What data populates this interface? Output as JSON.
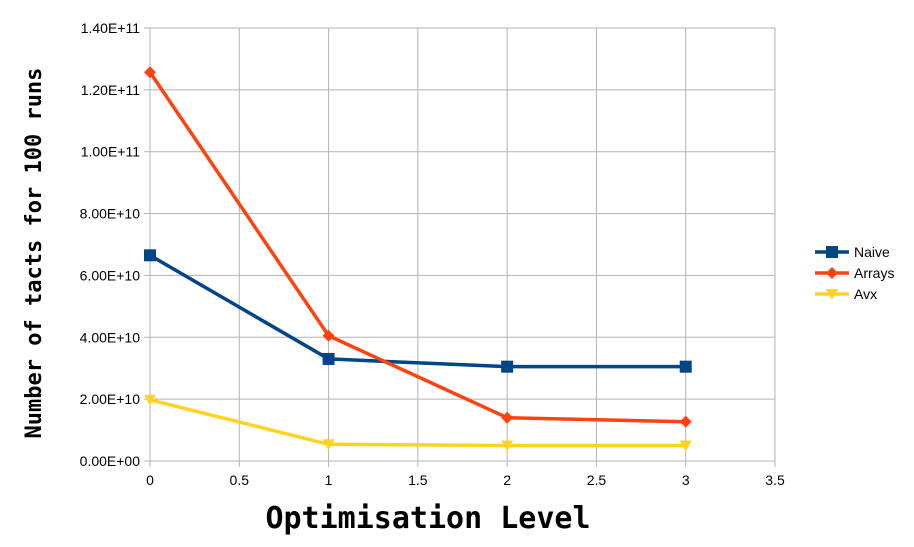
{
  "chart_data": {
    "type": "line",
    "title": "",
    "xlabel": "Optimisation Level",
    "ylabel": "Number of tacts for 100 runs",
    "xlim": [
      0,
      3.5
    ],
    "ylim": [
      0,
      140000000000
    ],
    "x_ticks": [
      "0",
      "0.5",
      "1",
      "1.5",
      "2",
      "2.5",
      "3",
      "3.5"
    ],
    "y_ticks": [
      "0.00E+00",
      "2.00E+10",
      "4.00E+10",
      "6.00E+10",
      "8.00E+10",
      "1.00E+11",
      "1.20E+11",
      "1.40E+11"
    ],
    "grid": true,
    "legend_position": "right",
    "series": [
      {
        "name": "Naive",
        "color": "#004586",
        "marker": "square",
        "x": [
          0,
          1,
          2,
          3
        ],
        "values": [
          66500000000,
          33000000000,
          30500000000,
          30500000000
        ]
      },
      {
        "name": "Arrays",
        "color": "#ff420e",
        "marker": "diamond",
        "x": [
          0,
          1,
          2,
          3
        ],
        "values": [
          125700000000,
          40500000000,
          14000000000,
          12700000000
        ]
      },
      {
        "name": "Avx",
        "color": "#ffd320",
        "marker": "triangle-down",
        "x": [
          0,
          1,
          2,
          3
        ],
        "values": [
          19800000000,
          5400000000,
          5000000000,
          5000000000
        ]
      }
    ]
  }
}
